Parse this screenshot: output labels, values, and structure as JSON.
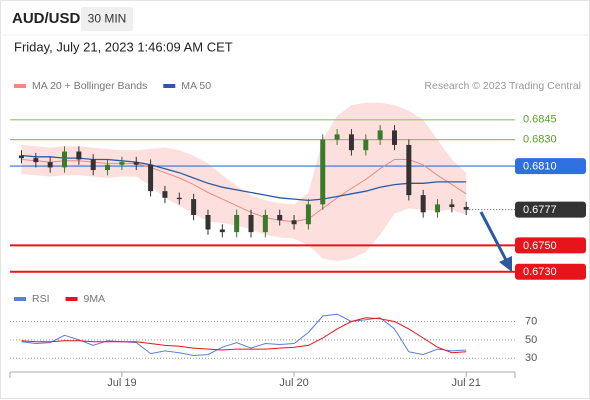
{
  "header": {
    "symbol": "AUD/USD",
    "timeframe": "30 MIN",
    "timestamp": "Friday, July 21, 2023 1:46:09 AM CET"
  },
  "chart_data": [
    {
      "type": "candlestick",
      "source": "Research © 2023 Trading Central",
      "x": [
        -14,
        -12,
        -10,
        -8,
        -6,
        -4,
        -2,
        0,
        2,
        4,
        6,
        8,
        10,
        12,
        14,
        16,
        18,
        20,
        22,
        24,
        26,
        28,
        30,
        32,
        34,
        36,
        38,
        40,
        42,
        44,
        46,
        48
      ],
      "open": [
        0.6818,
        0.6816,
        0.6813,
        0.6809,
        0.6821,
        0.6815,
        0.6807,
        0.6811,
        0.6813,
        0.6811,
        0.6791,
        0.6786,
        0.6785,
        0.6773,
        0.6762,
        0.676,
        0.6773,
        0.676,
        0.6773,
        0.6769,
        0.6766,
        0.6781,
        0.683,
        0.6834,
        0.6822,
        0.683,
        0.6837,
        0.6826,
        0.6788,
        0.6775,
        0.6781,
        0.6779
      ],
      "high": [
        0.6822,
        0.682,
        0.6817,
        0.6825,
        0.6825,
        0.6819,
        0.6815,
        0.6817,
        0.6817,
        0.6815,
        0.6795,
        0.679,
        0.6789,
        0.6777,
        0.6766,
        0.6777,
        0.6777,
        0.6777,
        0.6777,
        0.6773,
        0.6785,
        0.6834,
        0.6838,
        0.6838,
        0.6834,
        0.6841,
        0.6841,
        0.683,
        0.6792,
        0.6785,
        0.6785,
        0.6783
      ],
      "low": [
        0.6812,
        0.6809,
        0.6805,
        0.6805,
        0.6811,
        0.6803,
        0.6803,
        0.6807,
        0.6807,
        0.6787,
        0.6782,
        0.6781,
        0.6769,
        0.6758,
        0.6756,
        0.6756,
        0.6756,
        0.6756,
        0.6765,
        0.6762,
        0.6762,
        0.6777,
        0.6826,
        0.6818,
        0.6818,
        0.6826,
        0.6822,
        0.6784,
        0.6771,
        0.6771,
        0.6775,
        0.6773
      ],
      "close": [
        0.6816,
        0.6813,
        0.6809,
        0.6821,
        0.6815,
        0.6807,
        0.6811,
        0.6813,
        0.6811,
        0.6791,
        0.6786,
        0.6785,
        0.6773,
        0.6762,
        0.676,
        0.6773,
        0.676,
        0.6773,
        0.6769,
        0.6766,
        0.6781,
        0.683,
        0.6834,
        0.6822,
        0.683,
        0.6837,
        0.6826,
        0.6788,
        0.6775,
        0.6781,
        0.6779,
        0.6777
      ],
      "up_color": "#3b7a2a",
      "down_color": "#333333",
      "series": [
        {
          "name": "MA 20 + Bollinger Bands",
          "color": "#f08a80",
          "values": [
            0.6815,
            0.6814,
            0.6813,
            0.6814,
            0.6814,
            0.6813,
            0.6812,
            0.6812,
            0.6812,
            0.6809,
            0.6805,
            0.6801,
            0.6796,
            0.679,
            0.6785,
            0.678,
            0.6775,
            0.6771,
            0.6769,
            0.6768,
            0.677,
            0.6778,
            0.6786,
            0.6793,
            0.68,
            0.6808,
            0.6815,
            0.6815,
            0.6811,
            0.6803,
            0.6796,
            0.6789
          ]
        },
        {
          "name": "MA 50",
          "color": "#2c5aa0",
          "values": [
            0.6818,
            0.6817,
            0.6817,
            0.6816,
            0.6816,
            0.6815,
            0.6815,
            0.6814,
            0.6813,
            0.6811,
            0.6808,
            0.6805,
            0.6801,
            0.6797,
            0.6794,
            0.6792,
            0.679,
            0.6788,
            0.6786,
            0.6785,
            0.6784,
            0.6785,
            0.6787,
            0.6789,
            0.6791,
            0.6794,
            0.6796,
            0.6797,
            0.6797,
            0.6798,
            0.6798,
            0.6798
          ]
        }
      ],
      "bollinger": {
        "color": "#fde0de",
        "upper": [
          0.6826,
          0.6825,
          0.6824,
          0.6825,
          0.6825,
          0.6824,
          0.6823,
          0.6822,
          0.6822,
          0.6823,
          0.6824,
          0.6822,
          0.6818,
          0.6812,
          0.6803,
          0.6795,
          0.6788,
          0.6784,
          0.6782,
          0.6781,
          0.679,
          0.683,
          0.6848,
          0.6856,
          0.6858,
          0.6858,
          0.6856,
          0.6852,
          0.6845,
          0.683,
          0.6815,
          0.6805
        ],
        "lower": [
          0.6804,
          0.6803,
          0.6802,
          0.6803,
          0.6803,
          0.6802,
          0.6801,
          0.6802,
          0.6802,
          0.6795,
          0.6786,
          0.678,
          0.6774,
          0.6768,
          0.6767,
          0.6765,
          0.6762,
          0.6758,
          0.6756,
          0.6755,
          0.675,
          0.674,
          0.6738,
          0.674,
          0.6745,
          0.6758,
          0.6774,
          0.6778,
          0.6777,
          0.6776,
          0.6777,
          0.6773
        ]
      },
      "levels": [
        {
          "value": 0.6845,
          "color": "#8fc65a",
          "kind": "text"
        },
        {
          "value": 0.683,
          "label": "0.6830",
          "color": "#8fc65a",
          "kind": "text"
        },
        {
          "value": 0.681,
          "label": "0.6810",
          "color": "#2f6fe0",
          "kind": "box"
        },
        {
          "value": 0.6777,
          "color": "#333333",
          "kind": "dotted-box"
        },
        {
          "value": 0.675,
          "label": "0.6750",
          "color": "#e8141c",
          "kind": "box"
        },
        {
          "value": 0.673,
          "label": "0.6730",
          "color": "#e8141c",
          "kind": "box"
        }
      ],
      "xlim": [
        -15.6,
        54.8
      ],
      "ylim": [
        0.672,
        0.686
      ]
    },
    {
      "type": "line",
      "x": [
        -14,
        -12,
        -10,
        -8,
        -6,
        -4,
        -2,
        0,
        2,
        4,
        6,
        8,
        10,
        12,
        14,
        16,
        18,
        20,
        22,
        24,
        26,
        28,
        30,
        32,
        34,
        36,
        38,
        40,
        42,
        44,
        46,
        48
      ],
      "series": [
        {
          "name": "RSI",
          "color": "#5b7fd6",
          "values": [
            48,
            46,
            47,
            55,
            50,
            44,
            49,
            48,
            47,
            35,
            38,
            36,
            33,
            34,
            42,
            47,
            41,
            46,
            45,
            46,
            58,
            76,
            78,
            70,
            72,
            74,
            62,
            37,
            34,
            40,
            38,
            39
          ]
        },
        {
          "name": "9MA",
          "color": "#e8141c",
          "values": [
            49,
            48,
            48,
            49,
            49,
            48,
            48,
            48,
            48,
            46,
            44,
            43,
            41,
            40,
            39,
            40,
            40,
            40,
            41,
            42,
            44,
            52,
            62,
            70,
            74,
            73,
            70,
            62,
            52,
            42,
            36,
            37
          ]
        }
      ],
      "xlim": [
        -15.6,
        54.8
      ],
      "ylim": [
        15,
        88
      ],
      "yticks": [
        30,
        50,
        70
      ],
      "xticks": [
        {
          "value": 0,
          "label": "Jul 19"
        },
        {
          "value": 24,
          "label": "Jul 20"
        },
        {
          "value": 48,
          "label": "Jul 21"
        }
      ]
    }
  ]
}
